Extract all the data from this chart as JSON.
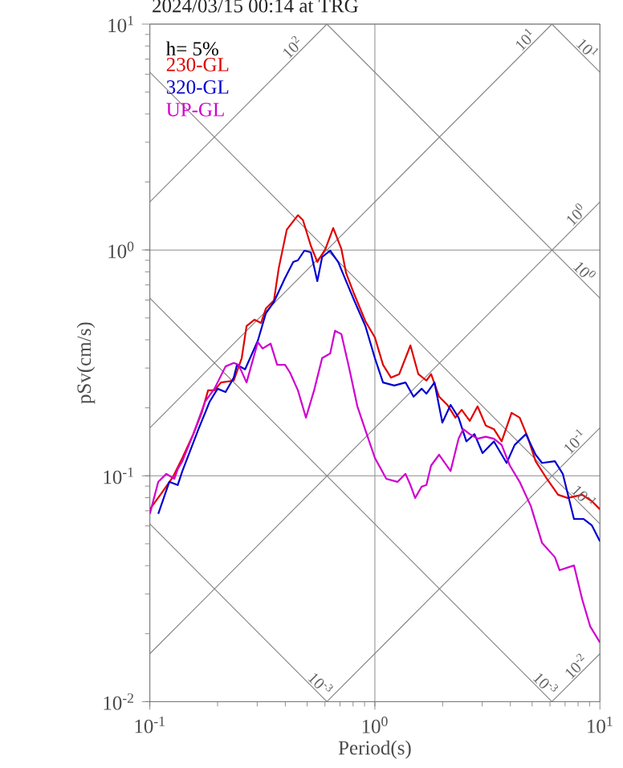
{
  "chart_data": {
    "type": "line",
    "title": "2024/03/15 00:14 at TRG",
    "xlabel": "Period(s)",
    "ylabel": "pSv(cm/s)",
    "log": "xy",
    "xlim": [
      0.1,
      10
    ],
    "ylim": [
      0.01,
      10
    ],
    "xticks": [
      {
        "value": 0.1,
        "label": "10$^{-1}$"
      },
      {
        "value": 1,
        "label": "10$^{0}$"
      },
      {
        "value": 10,
        "label": "10$^{1}$"
      }
    ],
    "yticks": [
      {
        "value": 0.01,
        "label": "10$^{-2}$"
      },
      {
        "value": 0.1,
        "label": "10$^{-1}$"
      },
      {
        "value": 1,
        "label": "10$^{0}$"
      },
      {
        "value": 10,
        "label": "10$^{1}$"
      }
    ],
    "grid": true,
    "legend": "top left",
    "annotations": [
      "h= 5%",
      {
        "text": "10$^{2}$",
        "x": 0.456,
        "y": 7.45
      },
      {
        "text": "10$^{1}$",
        "x": 4.93,
        "y": 8.05
      },
      {
        "text": "10$^{1}$",
        "x": 8.3,
        "y": 7.37
      },
      {
        "text": "10$^{0}$",
        "x": 8.3,
        "y": 1.353
      },
      {
        "text": "10$^{0}$",
        "x": 8.05,
        "y": 0.76
      },
      {
        "text": "10$^{-1}$",
        "x": 8.2,
        "y": 0.1337
      },
      {
        "text": "10$^{-1}$",
        "x": 8.0,
        "y": 0.0765
      },
      {
        "text": "10$^{-2}$",
        "x": 8.3,
        "y": 0.01353
      },
      {
        "text": "10$^{-3}$",
        "x": 5.4,
        "y": 0.01133
      },
      {
        "text": "10$^{-3}$",
        "x": 0.54,
        "y": 0.01133
      }
    ],
    "series": [
      {
        "color": "#808080",
        "x": [
          0.1,
          0.612
        ],
        "values": [
          1.63,
          10
        ]
      },
      {
        "color": "#808080",
        "x": [
          0.1,
          6.12
        ],
        "values": [
          0.163,
          10
        ]
      },
      {
        "color": "#808080",
        "x": [
          0.1,
          10
        ],
        "values": [
          0.0163,
          1.63
        ]
      },
      {
        "color": "#808080",
        "x": [
          0.612,
          10
        ],
        "values": [
          0.01,
          0.163
        ]
      },
      {
        "color": "#808080",
        "x": [
          6.12,
          10
        ],
        "values": [
          0.01,
          0.0163
        ]
      },
      {
        "color": "#808080",
        "x": [
          6.12,
          10
        ],
        "values": [
          10,
          6.12
        ]
      },
      {
        "color": "#808080",
        "x": [
          0.612,
          10
        ],
        "values": [
          10,
          0.612
        ]
      },
      {
        "color": "#808080",
        "x": [
          0.1,
          10
        ],
        "values": [
          6.12,
          0.0612
        ]
      },
      {
        "color": "#808080",
        "x": [
          0.1,
          6.12
        ],
        "values": [
          0.612,
          0.01
        ]
      },
      {
        "color": "#808080",
        "x": [
          0.1,
          0.612
        ],
        "values": [
          0.0612,
          0.01
        ]
      },
      {
        "name": "230-GL",
        "color": "#e00000",
        "x": [
          0.1,
          0.1127,
          0.1265,
          0.1395,
          0.156,
          0.17,
          0.1815,
          0.1937,
          0.207,
          0.236,
          0.256,
          0.269,
          0.292,
          0.312,
          0.328,
          0.356,
          0.374,
          0.406,
          0.455,
          0.479,
          0.519,
          0.555,
          0.603,
          0.653,
          0.71,
          0.745,
          0.809,
          0.908,
          1.0,
          1.087,
          1.18,
          1.283,
          1.439,
          1.56,
          1.694,
          1.778,
          1.93,
          2.1,
          2.28,
          2.43,
          2.64,
          2.86,
          3.11,
          3.38,
          3.66,
          4.05,
          4.4,
          4.77,
          5.18,
          5.81,
          6.52,
          7.19,
          8.34,
          9.2,
          10
        ],
        "values": [
          0.0711,
          0.0838,
          0.0987,
          0.12,
          0.153,
          0.19,
          0.239,
          0.239,
          0.259,
          0.264,
          0.332,
          0.46,
          0.491,
          0.475,
          0.551,
          0.598,
          0.83,
          1.23,
          1.426,
          1.355,
          1.045,
          0.885,
          1.01,
          1.25,
          1.01,
          0.79,
          0.638,
          0.483,
          0.41,
          0.31,
          0.272,
          0.282,
          0.378,
          0.282,
          0.264,
          0.282,
          0.224,
          0.206,
          0.181,
          0.196,
          0.175,
          0.203,
          0.167,
          0.161,
          0.142,
          0.19,
          0.181,
          0.149,
          0.116,
          0.097,
          0.0824,
          0.0798,
          0.0824,
          0.0773,
          0.0711
        ]
      },
      {
        "name": "320-GL",
        "color": "#0000d0",
        "x": [
          0.109,
          0.122,
          0.133,
          0.1395,
          0.1645,
          0.1845,
          0.2,
          0.217,
          0.236,
          0.244,
          0.265,
          0.302,
          0.328,
          0.356,
          0.399,
          0.434,
          0.455,
          0.486,
          0.519,
          0.555,
          0.583,
          0.633,
          0.687,
          0.745,
          0.809,
          0.908,
          1.0,
          1.087,
          1.22,
          1.368,
          1.486,
          1.614,
          1.694,
          1.84,
          1.995,
          2.17,
          2.355,
          2.55,
          2.77,
          3.01,
          3.38,
          3.85,
          4.18,
          4.69,
          5.18,
          5.53,
          6.31,
          6.84,
          7.67,
          8.47,
          9.2,
          10
        ],
        "values": [
          0.0678,
          0.094,
          0.091,
          0.105,
          0.161,
          0.213,
          0.243,
          0.235,
          0.272,
          0.31,
          0.296,
          0.397,
          0.525,
          0.589,
          0.752,
          0.885,
          0.9,
          0.993,
          0.977,
          0.728,
          0.931,
          0.993,
          0.885,
          0.728,
          0.598,
          0.46,
          0.332,
          0.259,
          0.251,
          0.259,
          0.224,
          0.243,
          0.231,
          0.259,
          0.172,
          0.206,
          0.181,
          0.142,
          0.153,
          0.126,
          0.142,
          0.114,
          0.137,
          0.153,
          0.124,
          0.114,
          0.116,
          0.102,
          0.0644,
          0.0644,
          0.0604,
          0.0513
        ]
      },
      {
        "name": "UP-GL",
        "color": "#d000d0",
        "x": [
          0.1,
          0.109,
          0.1184,
          0.1285,
          0.133,
          0.1395,
          0.156,
          0.176,
          0.1937,
          0.217,
          0.236,
          0.248,
          0.269,
          0.302,
          0.317,
          0.344,
          0.368,
          0.399,
          0.42,
          0.455,
          0.494,
          0.537,
          0.583,
          0.633,
          0.665,
          0.71,
          0.771,
          0.836,
          0.908,
          1.0,
          1.124,
          1.262,
          1.368,
          1.439,
          1.51,
          1.614,
          1.694,
          1.778,
          1.93,
          2.17,
          2.355,
          2.47,
          2.64,
          2.86,
          3.11,
          3.38,
          3.66,
          3.98,
          4.4,
          4.93,
          5.53,
          6.31,
          6.62,
          7.67,
          8.34,
          9.06,
          10
        ],
        "values": [
          0.0678,
          0.094,
          0.102,
          0.097,
          0.107,
          0.116,
          0.153,
          0.213,
          0.243,
          0.305,
          0.316,
          0.31,
          0.259,
          0.391,
          0.366,
          0.385,
          0.31,
          0.31,
          0.286,
          0.239,
          0.181,
          0.239,
          0.332,
          0.348,
          0.439,
          0.424,
          0.296,
          0.203,
          0.159,
          0.12,
          0.097,
          0.094,
          0.102,
          0.091,
          0.0798,
          0.0895,
          0.091,
          0.111,
          0.124,
          0.105,
          0.146,
          0.161,
          0.153,
          0.146,
          0.149,
          0.146,
          0.137,
          0.111,
          0.094,
          0.0735,
          0.0505,
          0.0436,
          0.0382,
          0.0401,
          0.0284,
          0.0215,
          0.0183
        ]
      }
    ]
  }
}
